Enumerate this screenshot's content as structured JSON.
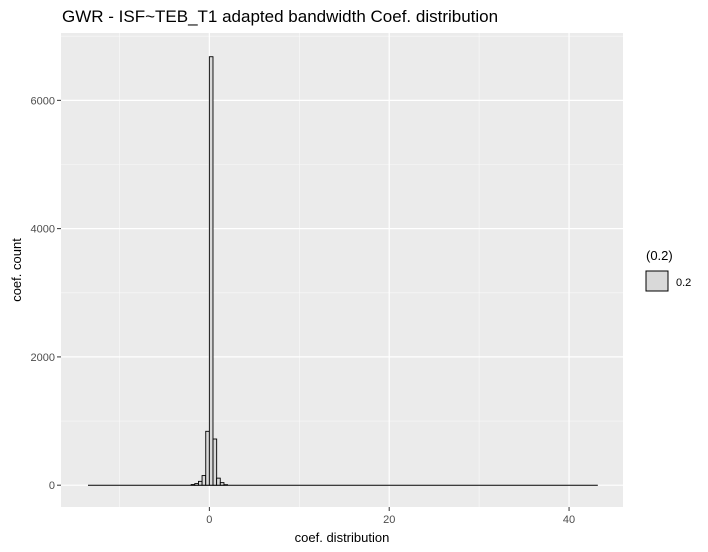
{
  "chart_data": {
    "type": "bar",
    "title": "GWR - ISF~TEB_T1 adapted bandwidth Coef. distribution",
    "xlabel": "coef. distribution",
    "ylabel": "coef. count",
    "xlim": [
      -16.5,
      46
    ],
    "ylim": [
      -340,
      7050
    ],
    "x_ticks": [
      0,
      20,
      40
    ],
    "x_tick_labels": [
      "0",
      "20",
      "40"
    ],
    "y_ticks": [
      0,
      2000,
      4000,
      6000
    ],
    "y_tick_labels": [
      "0",
      "2000",
      "4000",
      "6000"
    ],
    "bin_width": 0.405,
    "bins_start": -13.5,
    "bins_end": 43.2,
    "nonzero_bins": [
      {
        "x": -1.82,
        "count": 10
      },
      {
        "x": -1.42,
        "count": 25
      },
      {
        "x": -1.01,
        "count": 60
      },
      {
        "x": -0.61,
        "count": 150
      },
      {
        "x": -0.2,
        "count": 840
      },
      {
        "x": 0.2,
        "count": 6680
      },
      {
        "x": 0.61,
        "count": 720
      },
      {
        "x": 1.01,
        "count": 110
      },
      {
        "x": 1.42,
        "count": 40
      },
      {
        "x": 1.82,
        "count": 8
      }
    ],
    "fill_color": "#d9d9d9",
    "outline_color": "#000000",
    "panel_background": "#ebebeb",
    "grid_color": "#ffffff",
    "grid": true,
    "legend": {
      "title": "(0.2)",
      "entries": [
        "0.2"
      ],
      "placement": "right"
    }
  }
}
